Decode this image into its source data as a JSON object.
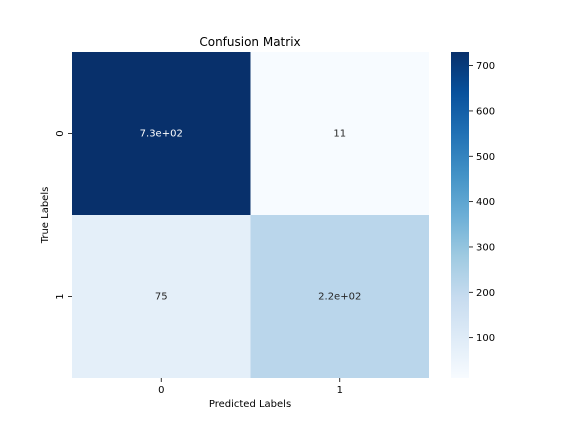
{
  "chart_data": {
    "type": "heatmap",
    "title": "Confusion Matrix",
    "xlabel": "Predicted Labels",
    "ylabel": "True Labels",
    "x_categories": [
      "0",
      "1"
    ],
    "y_categories": [
      "0",
      "1"
    ],
    "values": [
      [
        730,
        11
      ],
      [
        75,
        220
      ]
    ],
    "annotations": [
      [
        "7.3e+02",
        "11"
      ],
      [
        "75",
        "2.2e+02"
      ]
    ],
    "colormap": "Blues",
    "colorbar": {
      "ticks": [
        "100",
        "200",
        "300",
        "400",
        "500",
        "600",
        "700"
      ],
      "range": [
        11,
        730
      ]
    },
    "colors": {
      "min": "#f7fbff",
      "max": "#08306b",
      "cell_0_0": "#08306b",
      "cell_0_1": "#f7fbff",
      "cell_1_0": "#e4eff9",
      "cell_1_1": "#bad6eb"
    }
  }
}
